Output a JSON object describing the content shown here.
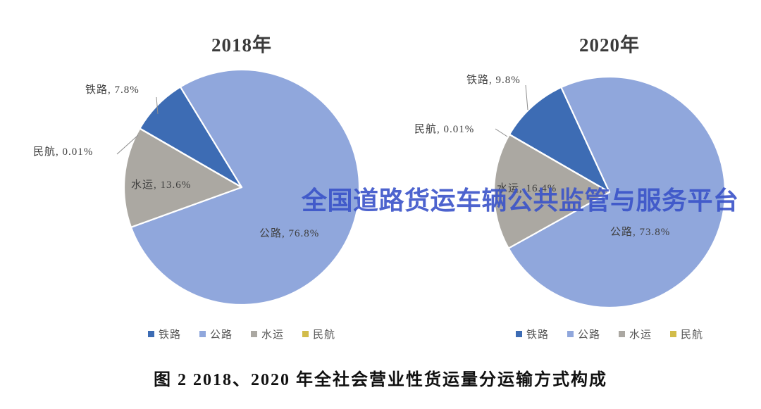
{
  "watermark": {
    "text": "全国道路货运车辆公共监管与服务平台",
    "color": "#3A53C9"
  },
  "caption": "图 2 2018、2020 年全社会营业性货运量分运输方式构成",
  "colors": {
    "railway": "#3D6CB4",
    "road": "#90A7DC",
    "water": "#ABA8A2",
    "aviation": "#D2BC4A"
  },
  "chart_data": [
    {
      "type": "pie",
      "title": "2018年",
      "categories": [
        "铁路",
        "公路",
        "水运",
        "民航"
      ],
      "ids": [
        "railway",
        "road",
        "water",
        "aviation"
      ],
      "values": [
        7.8,
        76.8,
        13.6,
        0.01
      ],
      "unit": "%",
      "start_angle_deg": 300,
      "direction": "clockwise",
      "slice_labels": [
        "铁路, 7.8%",
        "公路, 76.8%",
        "水运, 13.6%",
        "民航, 0.01%"
      ],
      "legend": [
        "铁路",
        "公路",
        "水运",
        "民航"
      ],
      "legend_position": "bottom"
    },
    {
      "type": "pie",
      "title": "2020年",
      "categories": [
        "铁路",
        "公路",
        "水运",
        "民航"
      ],
      "ids": [
        "railway",
        "road",
        "water",
        "aviation"
      ],
      "values": [
        9.8,
        73.8,
        16.4,
        0.01
      ],
      "unit": "%",
      "start_angle_deg": 300,
      "direction": "clockwise",
      "slice_labels": [
        "铁路, 9.8%",
        "公路, 73.8%",
        "水运, 16.4%",
        "民航, 0.01%"
      ],
      "legend": [
        "铁路",
        "公路",
        "水运",
        "民航"
      ],
      "legend_position": "bottom"
    }
  ]
}
